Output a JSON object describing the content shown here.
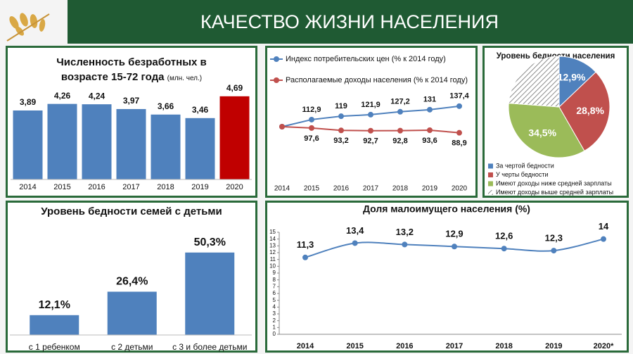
{
  "header": {
    "title": "КАЧЕСТВО ЖИЗНИ НАСЕЛЕНИЯ"
  },
  "chart_data": [
    {
      "type": "bar",
      "title": "Численность безработных в возрасте 15-72 года",
      "unit": "(млн. чел.)",
      "categories": [
        "2014",
        "2015",
        "2016",
        "2017",
        "2018",
        "2019",
        "2020"
      ],
      "values": [
        3.89,
        4.26,
        4.24,
        3.97,
        3.66,
        3.46,
        4.69
      ],
      "value_labels": [
        "3,89",
        "4,26",
        "4,24",
        "3,97",
        "3,66",
        "3,46",
        "4,69"
      ],
      "colors": [
        "#4f81bd",
        "#4f81bd",
        "#4f81bd",
        "#4f81bd",
        "#4f81bd",
        "#4f81bd",
        "#c00000"
      ]
    },
    {
      "type": "line",
      "categories": [
        "2014",
        "2015",
        "2016",
        "2017",
        "2018",
        "2019",
        "2020"
      ],
      "series": [
        {
          "name": "Индекс потребительских цен (% к 2014 году)",
          "color": "#4f81bd",
          "values": [
            100,
            112.9,
            119,
            121.9,
            127.2,
            131,
            137.4
          ],
          "value_labels": [
            null,
            "112,9",
            "119",
            "121,9",
            "127,2",
            "131",
            "137,4"
          ]
        },
        {
          "name": "Располагаемые доходы населения (% к 2014 году)",
          "color": "#c0504d",
          "values": [
            100,
            97.6,
            93.2,
            92.7,
            92.8,
            93.6,
            88.9
          ],
          "value_labels": [
            null,
            "97,6",
            "93,2",
            "92,7",
            "92,8",
            "93,6",
            "88,9"
          ]
        }
      ],
      "legend": "top"
    },
    {
      "type": "pie",
      "title": "Уровень бедности населения",
      "categories": [
        "За чертой бедности",
        "У черты бедности",
        "Имеют доходы ниже средней зарплаты",
        "Имеют доходы выше средней зарплаты"
      ],
      "values": [
        12.9,
        28.8,
        34.5,
        23.8
      ],
      "value_labels": [
        "12,9%",
        "28,8%",
        "34,5%",
        null
      ],
      "colors": [
        "#4f81bd",
        "#c0504d",
        "#9bbb59",
        "#8c8c8c"
      ],
      "hatched": [
        false,
        false,
        false,
        true
      ],
      "legend": "bottom"
    },
    {
      "type": "bar",
      "title": "Уровень бедности семей с детьми",
      "categories": [
        "с 1 ребенком",
        "с 2 детьми",
        "с 3 и более детьми"
      ],
      "values": [
        12.1,
        26.4,
        50.3
      ],
      "value_labels": [
        "12,1%",
        "26,4%",
        "50,3%"
      ],
      "colors": [
        "#4f81bd",
        "#4f81bd",
        "#4f81bd"
      ]
    },
    {
      "type": "line",
      "title": "Доля малоимущего населения (%)",
      "categories": [
        "2014",
        "2015",
        "2016",
        "2017",
        "2018",
        "2019",
        "2020*"
      ],
      "series": [
        {
          "name": null,
          "color": "#4f81bd",
          "values": [
            11.3,
            13.4,
            13.2,
            12.9,
            12.6,
            12.3,
            14
          ],
          "value_labels": [
            "11,3",
            "13,4",
            "13,2",
            "12,9",
            "12,6",
            "12,3",
            "14"
          ]
        }
      ],
      "ylim": [
        0,
        15
      ],
      "yticks": [
        0,
        1,
        2,
        3,
        4,
        5,
        6,
        7,
        8,
        9,
        10,
        11,
        12,
        13,
        14,
        15
      ],
      "grid": false,
      "smooth": true
    }
  ]
}
